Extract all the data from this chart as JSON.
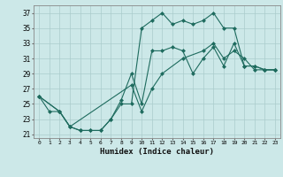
{
  "xlabel": "Humidex (Indice chaleur)",
  "bg_color": "#cce8e8",
  "grid_color": "#aacccc",
  "line_color": "#1e6b5e",
  "xlim": [
    -0.5,
    23.5
  ],
  "ylim": [
    20.5,
    38
  ],
  "yticks": [
    21,
    23,
    25,
    27,
    29,
    31,
    33,
    35,
    37
  ],
  "xticks": [
    0,
    1,
    2,
    3,
    4,
    5,
    6,
    7,
    8,
    9,
    10,
    11,
    12,
    13,
    14,
    15,
    16,
    17,
    18,
    19,
    20,
    21,
    22,
    23
  ],
  "line1_x": [
    0,
    1,
    2,
    3,
    4,
    5,
    6,
    7,
    8,
    9,
    10,
    11,
    12,
    13,
    14,
    15,
    16,
    17,
    18,
    19,
    20,
    21,
    22,
    23
  ],
  "line1_y": [
    26,
    24,
    24,
    22,
    21.5,
    21.5,
    21.5,
    23,
    25,
    25,
    35,
    36,
    37,
    35.5,
    36,
    35.5,
    36,
    37,
    35,
    35,
    30,
    30,
    29.5,
    29.5
  ],
  "line2_x": [
    0,
    2,
    3,
    4,
    5,
    6,
    7,
    8,
    9,
    10,
    11,
    12,
    13,
    14,
    15,
    16,
    17,
    18,
    19,
    20,
    21,
    22,
    23
  ],
  "line2_y": [
    26,
    24,
    22,
    21.5,
    21.5,
    21.5,
    23,
    25.5,
    29,
    25,
    32,
    32,
    32.5,
    32,
    29,
    31,
    32.5,
    30,
    33,
    30,
    30,
    29.5,
    29.5
  ],
  "line3_x": [
    0,
    2,
    3,
    9,
    10,
    11,
    12,
    14,
    16,
    17,
    18,
    19,
    20,
    21,
    22,
    23
  ],
  "line3_y": [
    26,
    24,
    22,
    27.5,
    24,
    27,
    29,
    31,
    32,
    33,
    31,
    32,
    31,
    29.5,
    29.5,
    29.5
  ]
}
